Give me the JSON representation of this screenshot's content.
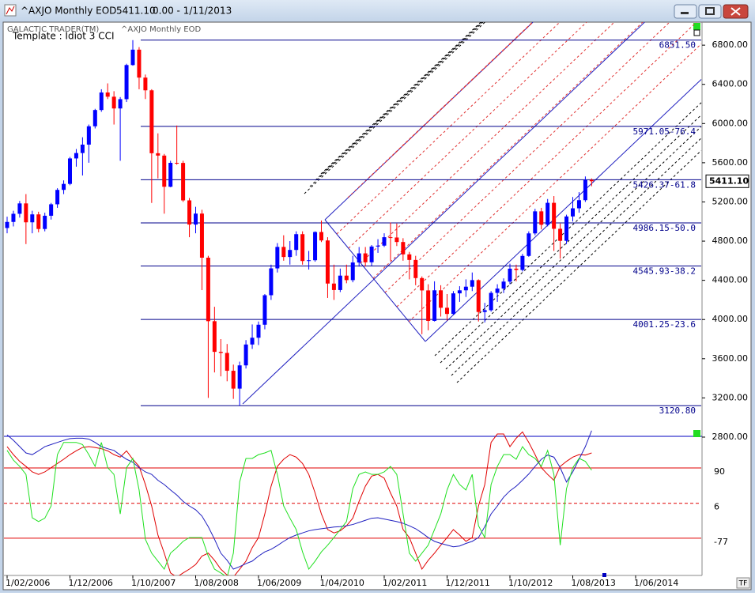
{
  "window": {
    "symbol": "^AXJO Monthly EOD",
    "price": "5411.10",
    "change": "0.00 - 1/11/2013",
    "button": "TF"
  },
  "chart_data": [
    {
      "type": "candlestick",
      "source": "GALACTIC TRADER(TM)",
      "subtitle": "^AXJO Monthly EOD",
      "template": "Template : Idiot 3 CCI",
      "categories": [
        "1/02/2006",
        null,
        null,
        null,
        null,
        null,
        null,
        null,
        null,
        null,
        "1/12/2006",
        null,
        null,
        null,
        null,
        null,
        null,
        null,
        null,
        null,
        "1/10/2007",
        null,
        null,
        null,
        null,
        null,
        null,
        null,
        null,
        null,
        "1/08/2008",
        null,
        null,
        null,
        null,
        null,
        null,
        null,
        null,
        null,
        "1/06/2009",
        null,
        null,
        null,
        null,
        null,
        null,
        null,
        null,
        null,
        "1/04/2010",
        null,
        null,
        null,
        null,
        null,
        null,
        null,
        null,
        null,
        "1/02/2011",
        null,
        null,
        null,
        null,
        null,
        null,
        null,
        null,
        null,
        "1/12/2011",
        null,
        null,
        null,
        null,
        null,
        null,
        null,
        null,
        null,
        "1/10/2012",
        null,
        null,
        null,
        null,
        null,
        null,
        null,
        null,
        null,
        "1/08/2013",
        null,
        null,
        null,
        null,
        null,
        null,
        null,
        null,
        null,
        "1/06/2014"
      ],
      "open": [
        4934,
        4996,
        5079,
        5185,
        4992,
        5073,
        4924,
        5059,
        5176,
        5323,
        5384,
        5644,
        5699,
        5785,
        5972,
        6138,
        6317,
        6274,
        6154,
        6249,
        6597,
        6754,
        6469,
        6339,
        5697,
        5673,
        5355,
        5599,
        5598,
        5216,
        4969,
        5081,
        4631,
        3983,
        3670,
        3659,
        3477,
        3295,
        3532,
        3745,
        3814,
        3947,
        4248,
        4522,
        4741,
        4638,
        4710,
        4871,
        4597,
        4605,
        4893,
        4807,
        4367,
        4301,
        4448,
        4402,
        4582,
        4675,
        4584,
        4745,
        4754,
        4840,
        4837,
        4791,
        4665,
        4608,
        4423,
        4297,
        3986,
        4298,
        4120,
        4057,
        4267,
        4298,
        4335,
        4402,
        4077,
        4095,
        4272,
        4316,
        4387,
        4519,
        4506,
        4649,
        4879,
        5104,
        4967,
        5191,
        4926,
        4803,
        5052,
        5135,
        5218,
        5425,
        null,
        null,
        null,
        null,
        null,
        null,
        null
      ],
      "high": [
        5050,
        5110,
        5210,
        5280,
        5110,
        5100,
        5090,
        5190,
        5340,
        5420,
        5660,
        5740,
        5860,
        5990,
        6150,
        6350,
        6410,
        6330,
        6270,
        6610,
        6851.5,
        6780,
        6500,
        6350,
        5900,
        5690,
        5620,
        5980,
        5620,
        5240,
        5150,
        5120,
        4650,
        4130,
        3800,
        3750,
        3540,
        3570,
        3790,
        3950,
        3980,
        4260,
        4560,
        4780,
        4860,
        4800,
        4900,
        4900,
        4700,
        4900,
        5010,
        4840,
        4560,
        4520,
        4560,
        4650,
        4740,
        4740,
        4760,
        4820,
        4880,
        4990,
        4980,
        4830,
        4690,
        4650,
        4440,
        4360,
        4390,
        4350,
        4260,
        4290,
        4340,
        4410,
        4480,
        4410,
        4170,
        4290,
        4360,
        4420,
        4570,
        4560,
        4670,
        4900,
        5130,
        5140,
        5230,
        5260,
        4980,
        5070,
        5250,
        5300,
        5460,
        5440,
        null,
        null,
        null,
        null,
        null,
        null,
        null
      ],
      "low": [
        4880,
        4950,
        5040,
        4770,
        4880,
        4890,
        4900,
        5020,
        5140,
        5280,
        5370,
        5560,
        5470,
        5600,
        5950,
        6120,
        6250,
        5990,
        5620,
        6220,
        6590,
        6350,
        6250,
        5190,
        5440,
        5080,
        5350,
        5580,
        5200,
        4840,
        4880,
        4300,
        3200,
        3460,
        3420,
        3370,
        3190,
        3120.8,
        3500,
        3700,
        3740,
        3900,
        4200,
        4480,
        4600,
        4560,
        4650,
        4560,
        4510,
        4590,
        4790,
        4220,
        4200,
        4280,
        4370,
        4380,
        4540,
        4540,
        4550,
        4680,
        4740,
        4600,
        4750,
        4600,
        4410,
        4350,
        3850,
        3890,
        3980,
        4030,
        3990,
        4050,
        4180,
        4230,
        4290,
        3980,
        3970,
        4080,
        4180,
        4270,
        4360,
        4390,
        4490,
        4640,
        4860,
        4920,
        4950,
        4700,
        4620,
        4770,
        5000,
        5090,
        5200,
        5360,
        null,
        null,
        null,
        null,
        null,
        null,
        null
      ],
      "close": [
        4996,
        5079,
        5185,
        4992,
        5073,
        4924,
        5059,
        5176,
        5323,
        5384,
        5644,
        5699,
        5785,
        5972,
        6138,
        6317,
        6274,
        6154,
        6249,
        6597,
        6754,
        6469,
        6339,
        5697,
        5673,
        5355,
        5599,
        5598,
        5216,
        4969,
        5081,
        4631,
        3983,
        3670,
        3659,
        3477,
        3295,
        3532,
        3745,
        3814,
        3947,
        4248,
        4522,
        4741,
        4638,
        4710,
        4871,
        4597,
        4605,
        4893,
        4807,
        4367,
        4301,
        4448,
        4402,
        4582,
        4675,
        4584,
        4745,
        4754,
        4840,
        4837,
        4791,
        4665,
        4608,
        4423,
        4297,
        3986,
        4298,
        4120,
        4057,
        4267,
        4298,
        4335,
        4402,
        4077,
        4095,
        4272,
        4316,
        4387,
        4519,
        4506,
        4649,
        4879,
        5104,
        4967,
        5191,
        4926,
        4803,
        5052,
        5135,
        5218,
        5425,
        5411.1,
        null,
        null,
        null,
        null,
        null,
        null,
        null
      ],
      "up_color": "#0000ff",
      "down_color": "#ff0000",
      "ylim": [
        2770,
        7035
      ],
      "yticks": [
        {
          "value": 6800,
          "label": "6800.00"
        },
        {
          "value": 6400,
          "label": "6400.00"
        },
        {
          "value": 6000,
          "label": "6000.00"
        },
        {
          "value": 5600,
          "label": "5600.00"
        },
        {
          "value": 5200,
          "label": "5200.00"
        },
        {
          "value": 4800,
          "label": "4800.00"
        },
        {
          "value": 4400,
          "label": "4400.00"
        },
        {
          "value": 4000,
          "label": "4000.00"
        },
        {
          "value": 3600,
          "label": "3600.00"
        },
        {
          "value": 3200,
          "label": "3200.00"
        },
        {
          "value": 2800,
          "label": "2800.00"
        }
      ],
      "levels": [
        {
          "value": 6851.5,
          "label": "6851.50"
        },
        {
          "value": 5971.05,
          "label": "5971.05-76.4"
        },
        {
          "value": 5426.37,
          "label": "5426.37-61.8"
        },
        {
          "value": 4986.15,
          "label": "4986.15-50.0"
        },
        {
          "value": 4545.93,
          "label": "4545.93-38.2"
        },
        {
          "value": 4001.25,
          "label": "4001.25-23.6"
        },
        {
          "value": 3120.8,
          "label": "3120.80"
        }
      ],
      "levels_color": "#00008b"
    },
    {
      "type": "line",
      "series": [
        {
          "color": "#e00000",
          "values": [
            150,
            131,
            115,
            103,
            90,
            84,
            90,
            100,
            110,
            120,
            131,
            140,
            148,
            150,
            148,
            145,
            140,
            131,
            125,
            140,
            120,
            103,
            60,
            9,
            -60,
            -103,
            -150,
            -160,
            -150,
            -141,
            -130,
            -110,
            -103,
            -120,
            -141,
            -155,
            -160,
            -141,
            -122,
            -90,
            -66,
            -10,
            56,
            103,
            120,
            131,
            125,
            110,
            84,
            40,
            -10,
            -47,
            -55,
            -50,
            -38,
            -20,
            20,
            56,
            80,
            84,
            75,
            40,
            9,
            -47,
            -66,
            -103,
            -141,
            -120,
            -103,
            -84,
            -66,
            -47,
            -60,
            -75,
            -66,
            9,
            60,
            160,
            180,
            180,
            150,
            170,
            185,
            160,
            131,
            100,
            84,
            70,
            103,
            115,
            125,
            131,
            130,
            135,
            null,
            null,
            null,
            null,
            null,
            null,
            null
          ]
        },
        {
          "color": "#2020c0",
          "values": [
            178,
            165,
            150,
            135,
            131,
            140,
            150,
            155,
            160,
            165,
            169,
            170,
            170,
            168,
            160,
            150,
            145,
            141,
            130,
            120,
            113,
            100,
            90,
            84,
            70,
            60,
            47,
            35,
            20,
            9,
            0,
            -15,
            -40,
            -70,
            -103,
            -120,
            -141,
            -135,
            -128,
            -122,
            -110,
            -100,
            -94,
            -85,
            -75,
            -66,
            -60,
            -55,
            -50,
            -47,
            -45,
            -43,
            -41,
            -40,
            -38,
            -35,
            -30,
            -25,
            -20,
            -19,
            -22,
            -25,
            -28,
            -32,
            -38,
            -45,
            -55,
            -66,
            -75,
            -80,
            -84,
            -88,
            -86,
            -80,
            -75,
            -66,
            -40,
            -10,
            9,
            30,
            45,
            56,
            70,
            85,
            103,
            120,
            130,
            125,
            100,
            66,
            90,
            120,
            150,
            188,
            null,
            null,
            null,
            null,
            null,
            null,
            null
          ]
        },
        {
          "color": "#20e020",
          "values": [
            141,
            118,
            103,
            84,
            -19,
            -28,
            -20,
            9,
            131,
            160,
            160,
            160,
            155,
            131,
            103,
            160,
            100,
            84,
            -10,
            100,
            122,
            47,
            -70,
            -103,
            -122,
            -141,
            -103,
            -90,
            -75,
            -66,
            -66,
            -66,
            -110,
            -141,
            -150,
            -160,
            -103,
            66,
            122,
            122,
            131,
            135,
            141,
            84,
            9,
            -20,
            -47,
            -100,
            -141,
            -122,
            -100,
            -84,
            -66,
            -47,
            -28,
            50,
            84,
            90,
            84,
            84,
            90,
            103,
            84,
            -10,
            -103,
            -122,
            -103,
            -84,
            -47,
            -10,
            47,
            84,
            60,
            47,
            84,
            -38,
            -66,
            60,
            103,
            131,
            131,
            120,
            150,
            131,
            122,
            103,
            141,
            84,
            -84,
            50,
            100,
            122,
            115,
            94,
            null,
            null,
            null,
            null,
            null,
            null,
            null
          ]
        }
      ],
      "ylim": [
        -156,
        197
      ],
      "yticks": [
        90,
        6,
        -77
      ],
      "grid": true,
      "grid_color": "#e00000"
    }
  ]
}
